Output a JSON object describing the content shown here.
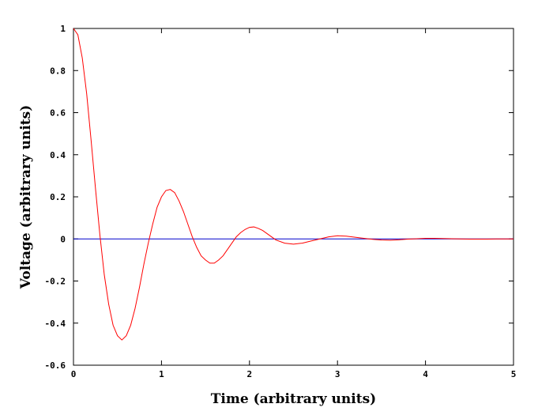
{
  "chart_data": {
    "type": "line",
    "title": "",
    "xlabel": "Time (arbitrary units)",
    "ylabel": "Voltage (arbitrary units)",
    "xlim": [
      0,
      5
    ],
    "ylim": [
      -0.6,
      1
    ],
    "xticks": [
      0,
      1,
      2,
      3,
      4,
      5
    ],
    "xtick_labels": [
      "0",
      "1",
      "2",
      "3",
      "4",
      "5"
    ],
    "yticks": [
      -0.6,
      -0.4,
      -0.2,
      0,
      0.2,
      0.4,
      0.6,
      0.8,
      1
    ],
    "ytick_labels": [
      "-0.6",
      "-0.4",
      "-0.2",
      "0",
      "0.2",
      "0.4",
      "0.6",
      "0.8",
      "1"
    ],
    "grid": false,
    "legend": "none",
    "series": [
      {
        "color": "#ff0000",
        "x": [
          0,
          0.05,
          0.1,
          0.15,
          0.2,
          0.25,
          0.3,
          0.35,
          0.4,
          0.45,
          0.5,
          0.55,
          0.6,
          0.65,
          0.7,
          0.75,
          0.8,
          0.85,
          0.9,
          0.95,
          1.0,
          1.05,
          1.1,
          1.15,
          1.2,
          1.25,
          1.3,
          1.35,
          1.4,
          1.45,
          1.5,
          1.55,
          1.6,
          1.65,
          1.7,
          1.75,
          1.8,
          1.85,
          1.9,
          1.95,
          2.0,
          2.05,
          2.1,
          2.15,
          2.2,
          2.25,
          2.3,
          2.4,
          2.5,
          2.6,
          2.7,
          2.8,
          2.9,
          3.0,
          3.1,
          3.2,
          3.3,
          3.4,
          3.5,
          3.6,
          3.7,
          3.8,
          3.9,
          4.0,
          4.1,
          4.2,
          4.3,
          4.4,
          4.5,
          4.6,
          4.7,
          4.8,
          4.9,
          5.0
        ],
        "y": [
          1.0,
          0.97,
          0.86,
          0.69,
          0.47,
          0.24,
          0.02,
          -0.17,
          -0.31,
          -0.41,
          -0.46,
          -0.48,
          -0.46,
          -0.41,
          -0.33,
          -0.23,
          -0.12,
          -0.02,
          0.07,
          0.15,
          0.2,
          0.23,
          0.235,
          0.22,
          0.18,
          0.13,
          0.07,
          0.01,
          -0.04,
          -0.08,
          -0.1,
          -0.115,
          -0.115,
          -0.1,
          -0.08,
          -0.05,
          -0.02,
          0.01,
          0.03,
          0.045,
          0.055,
          0.057,
          0.05,
          0.04,
          0.025,
          0.01,
          -0.005,
          -0.02,
          -0.025,
          -0.02,
          -0.01,
          0.0,
          0.01,
          0.015,
          0.013,
          0.008,
          0.003,
          -0.002,
          -0.005,
          -0.006,
          -0.004,
          -0.001,
          0.001,
          0.003,
          0.003,
          0.002,
          0.001,
          0.0,
          -0.001,
          -0.001,
          -0.001,
          0.0,
          0.0,
          0.0
        ]
      },
      {
        "color": "#0000cc",
        "x": [
          0,
          5
        ],
        "y": [
          0,
          0
        ]
      }
    ]
  }
}
